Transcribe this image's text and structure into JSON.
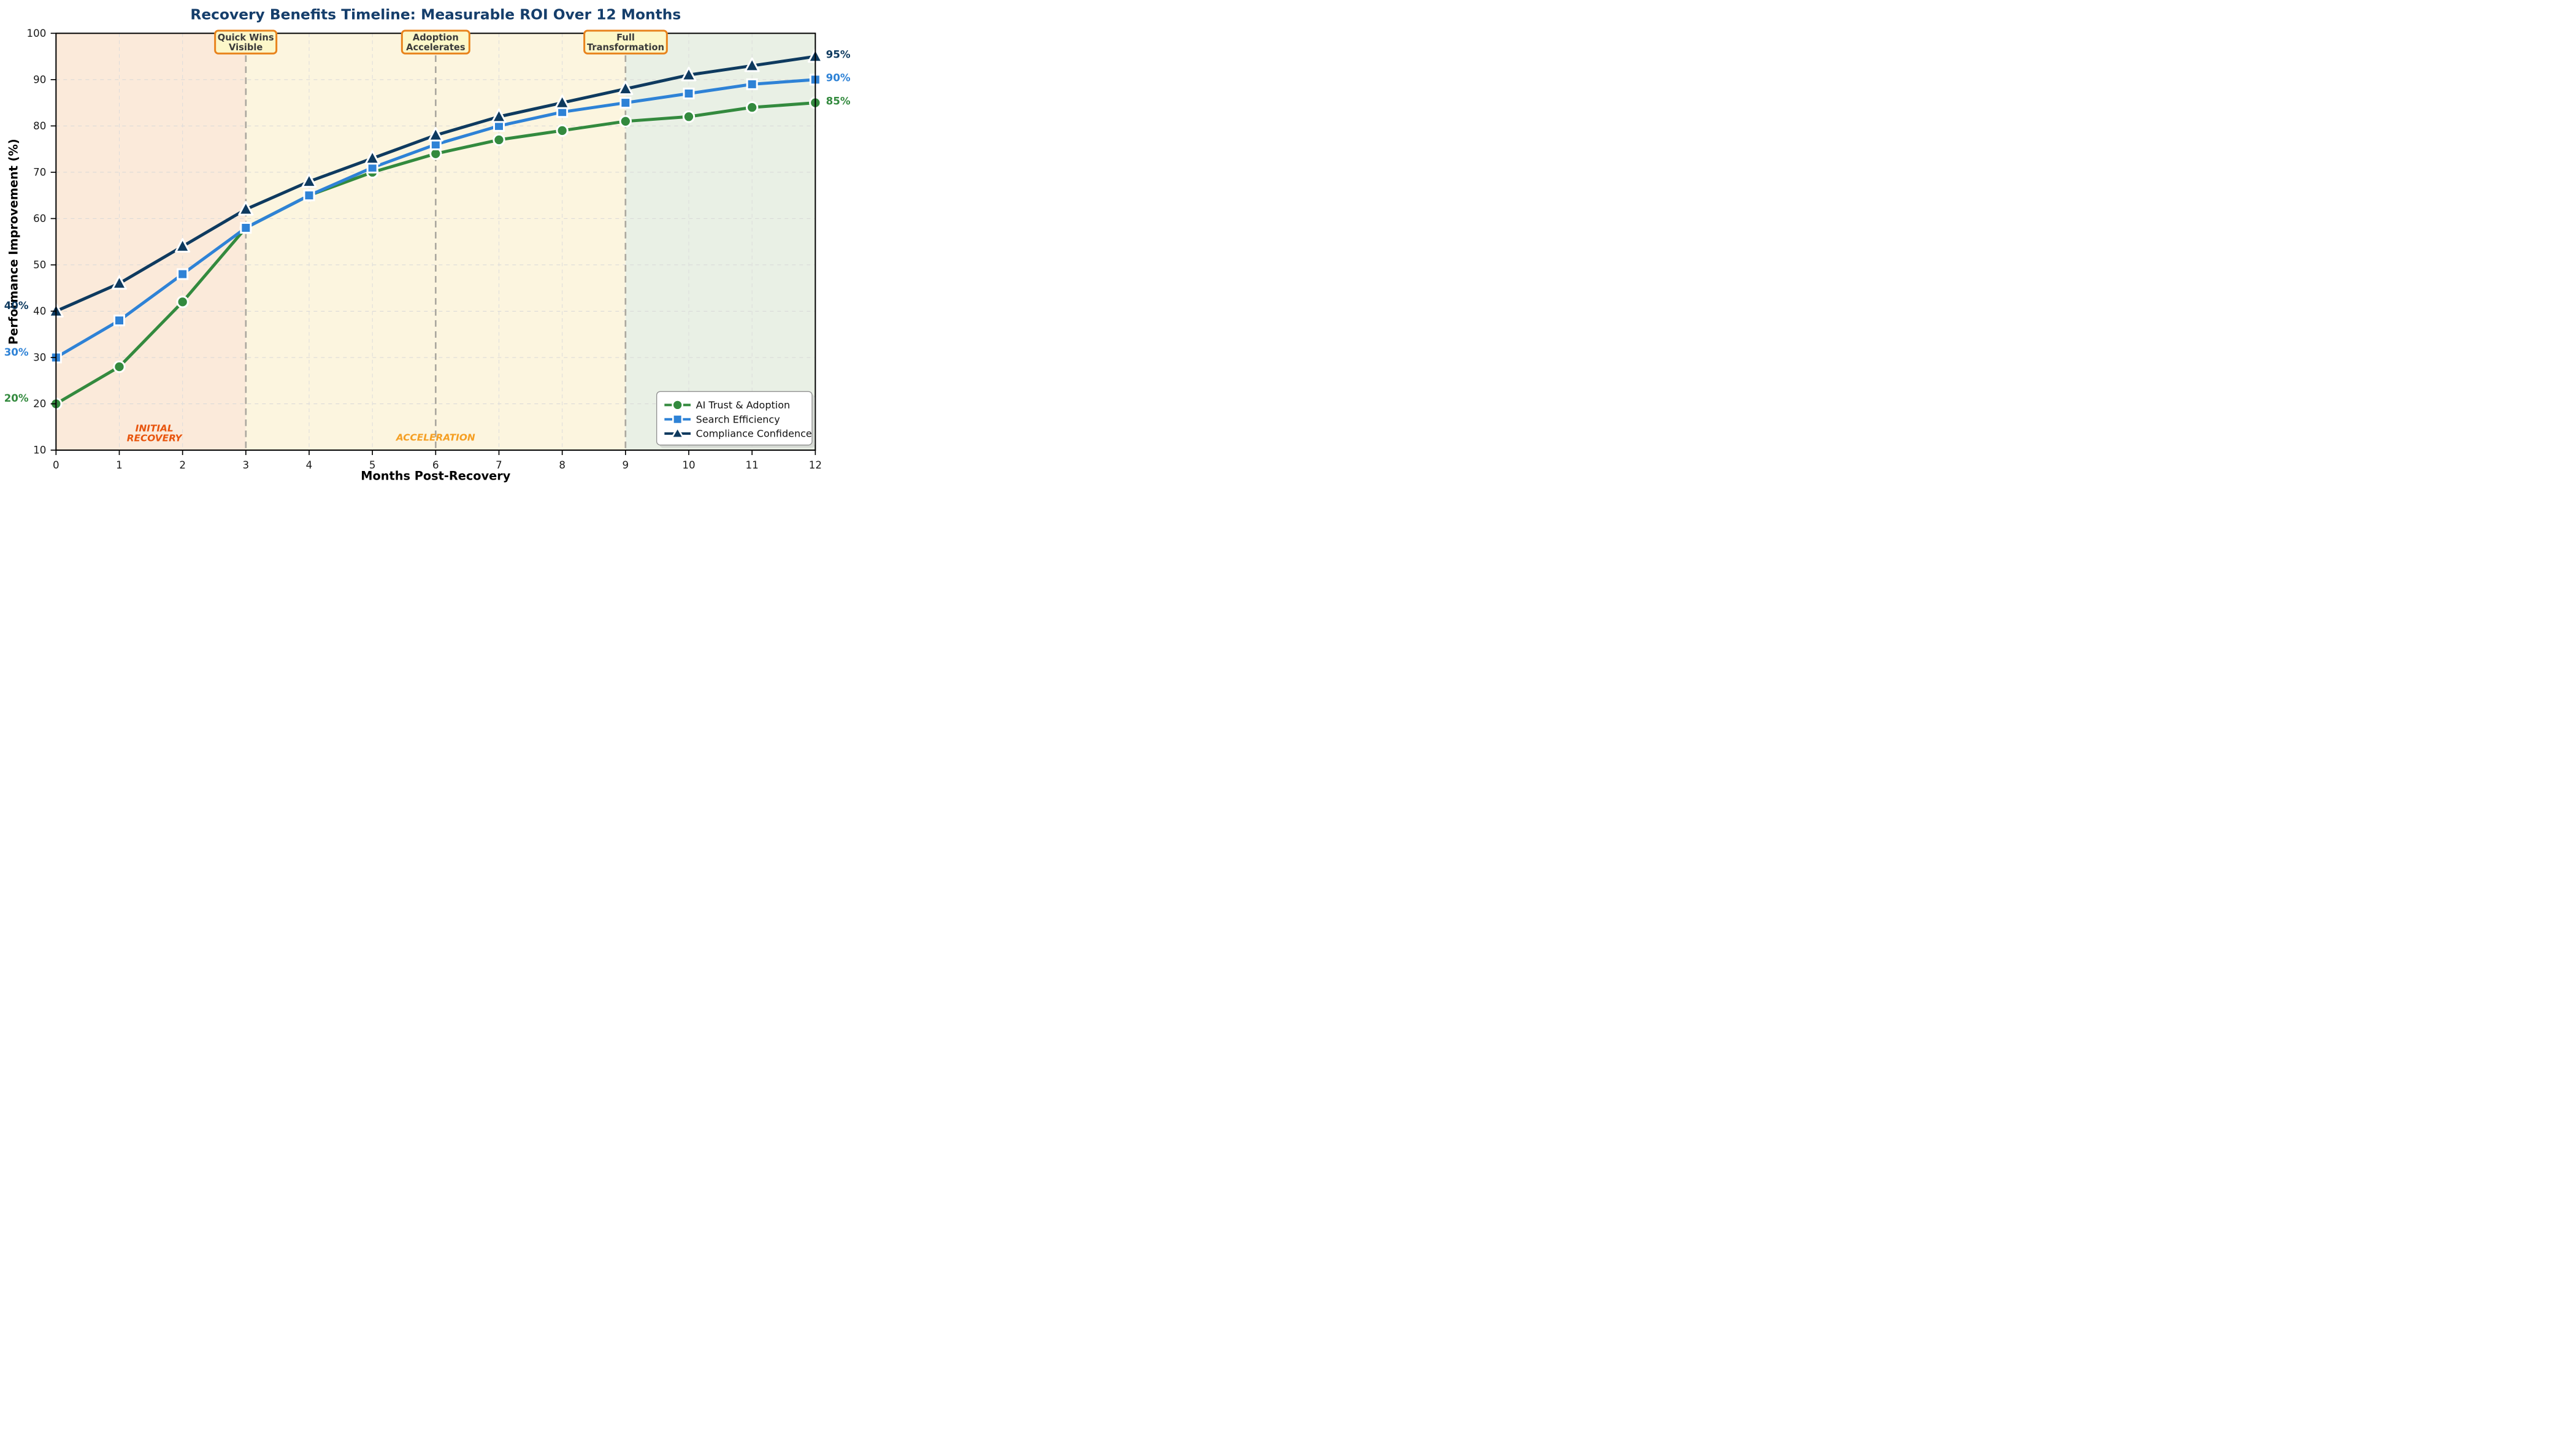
{
  "title": {
    "text": "Recovery Benefits Timeline: Measurable ROI Over 12 Months",
    "color": "#153E6B"
  },
  "axes": {
    "x_label": "Months Post-Recovery",
    "y_label": "Performance Improvement (%)",
    "x_ticks": [
      0,
      1,
      2,
      3,
      4,
      5,
      6,
      7,
      8,
      9,
      10,
      11,
      12
    ],
    "y_ticks": [
      10,
      20,
      30,
      40,
      50,
      60,
      70,
      80,
      90,
      100
    ],
    "x_range": [
      0,
      12
    ],
    "y_range": [
      10,
      100
    ]
  },
  "chart_data": {
    "type": "line",
    "title": "Recovery Benefits Timeline: Measurable ROI Over 12 Months",
    "xlabel": "Months Post-Recovery",
    "ylabel": "Performance Improvement (%)",
    "x": [
      0,
      1,
      2,
      3,
      4,
      5,
      6,
      7,
      8,
      9,
      10,
      11,
      12
    ],
    "series": [
      {
        "name": "AI Trust & Adoption",
        "color": "#338A3E",
        "marker": "circle",
        "values": [
          20,
          28,
          42,
          58,
          65,
          70,
          74,
          77,
          79,
          81,
          82,
          84,
          85
        ]
      },
      {
        "name": "Search Efficiency",
        "color": "#2E82D6",
        "marker": "square",
        "values": [
          30,
          38,
          48,
          58,
          65,
          71,
          76,
          80,
          83,
          85,
          87,
          89,
          90
        ]
      },
      {
        "name": "Compliance Confidence",
        "color": "#0E3A5F",
        "marker": "triangle",
        "values": [
          40,
          46,
          54,
          62,
          68,
          73,
          78,
          82,
          85,
          88,
          91,
          93,
          95
        ]
      }
    ],
    "xlim": [
      0,
      12
    ],
    "ylim": [
      10,
      100
    ],
    "grid": true,
    "legend_position": "lower right"
  },
  "phases": [
    {
      "label_line1": "INITIAL",
      "label_line2": "RECOVERY",
      "start": 0,
      "end": 3,
      "band_color": "#FBEADA",
      "label_color": "#E8550E"
    },
    {
      "label_line1": "ACCELERATION",
      "label_line2": "",
      "start": 3,
      "end": 9,
      "band_color": "#FCF5DF",
      "label_color": "#F59F23"
    },
    {
      "label_line1": "",
      "label_line2": "",
      "start": 9,
      "end": 12,
      "band_color": "#E9F0E5",
      "label_color": ""
    }
  ],
  "milestones": [
    {
      "month": 3,
      "line1": "Quick Wins",
      "line2": "Visible"
    },
    {
      "month": 6,
      "line1": "Adoption",
      "line2": "Accelerates"
    },
    {
      "month": 9,
      "line1": "Full",
      "line2": "Transformation"
    }
  ],
  "endpoint_labels": {
    "start": [
      {
        "text": "40%",
        "value": 40,
        "color": "#0E3A5F"
      },
      {
        "text": "30%",
        "value": 30,
        "color": "#2E82D6"
      },
      {
        "text": "20%",
        "value": 20,
        "color": "#338A3E"
      }
    ],
    "end": [
      {
        "text": "95%",
        "value": 95,
        "color": "#0E3A5F"
      },
      {
        "text": "90%",
        "value": 90,
        "color": "#2E82D6"
      },
      {
        "text": "85%",
        "value": 85,
        "color": "#338A3E"
      }
    ]
  },
  "legend": {
    "items": [
      {
        "label": "AI Trust & Adoption",
        "color": "#338A3E",
        "marker": "circle"
      },
      {
        "label": "Search Efficiency",
        "color": "#2E82D6",
        "marker": "square"
      },
      {
        "label": "Compliance Confidence",
        "color": "#0E3A5F",
        "marker": "triangle"
      }
    ]
  },
  "colors": {
    "grid": "#D7D7D7",
    "minor_vgrid": "#DCDCDC",
    "event_line": "#ABA89F",
    "spine": "#000000",
    "milestone_fill": "#FCF7C9",
    "milestone_border": "#E8831C",
    "milestone_text": "#3A3A3A",
    "legend_border": "#8F8F8F"
  }
}
